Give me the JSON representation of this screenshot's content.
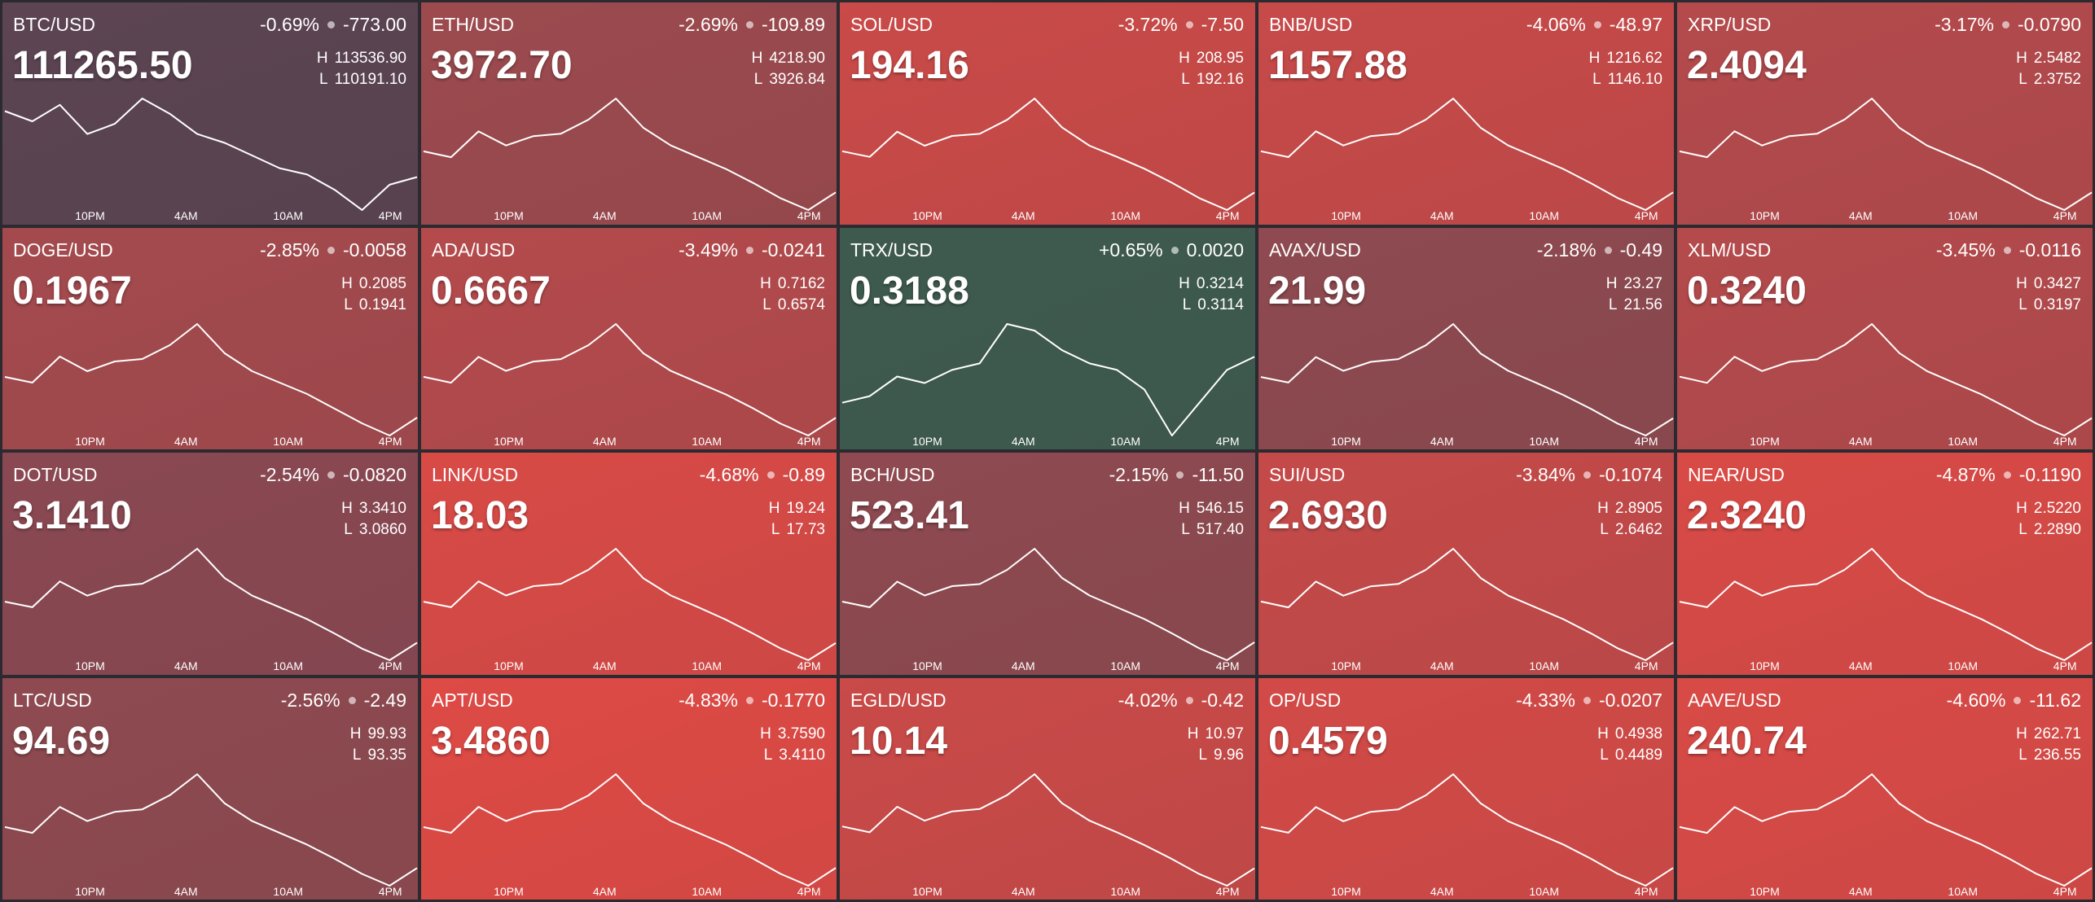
{
  "labels": {
    "high": "H",
    "low": "L"
  },
  "time_labels": [
    "10PM",
    "4AM",
    "10AM",
    "4PM"
  ],
  "tiles": [
    {
      "pair": "BTC/USD",
      "change_pct": "-0.69%",
      "change": "-773.00",
      "price": "111265.50",
      "high": "113536.90",
      "low": "110191.10",
      "color": "#5c4452",
      "spark": [
        112868,
        112600,
        113035,
        112266,
        112533,
        113202,
        112801,
        112266,
        112031,
        111697,
        111362,
        111195,
        110793,
        110258,
        110927,
        111128
      ]
    },
    {
      "pair": "ETH/USD",
      "change_pct": "-2.69%",
      "change": "-109.89",
      "price": "3972.70",
      "high": "4218.90",
      "low": "3926.84",
      "color": "#9c4a4e",
      "spark": [
        4087.5,
        4072.9,
        4137.1,
        4102.1,
        4125.4,
        4131.3,
        4166.3,
        4218.9,
        4145.9,
        4102.1,
        4072.9,
        4043.7,
        4008.6,
        3970.6,
        3941.4,
        3985.3
      ]
    },
    {
      "pair": "SOL/USD",
      "change_pct": "-3.72%",
      "change": "-7.50",
      "price": "194.16",
      "high": "208.95",
      "low": "192.16",
      "color": "#c94a48",
      "spark": [
        201.4,
        200.6,
        204.2,
        202.2,
        203.6,
        203.9,
        205.9,
        208.95,
        204.8,
        202.2,
        200.6,
        198.9,
        196.9,
        194.7,
        193.0,
        195.5
      ]
    },
    {
      "pair": "BNB/USD",
      "change_pct": "-4.06%",
      "change": "-48.97",
      "price": "1157.88",
      "high": "1216.62",
      "low": "1146.10",
      "color": "#c64a49",
      "spark": [
        1184.9,
        1181.4,
        1196.9,
        1188.4,
        1194.0,
        1195.5,
        1203.9,
        1216.6,
        1199.0,
        1188.4,
        1181.4,
        1174.3,
        1165.8,
        1156.7,
        1149.6,
        1160.2
      ]
    },
    {
      "pair": "XRP/USD",
      "change_pct": "-3.17%",
      "change": "-0.0790",
      "price": "2.4094",
      "high": "2.5482",
      "low": "2.3752",
      "color": "#b44a4c",
      "spark": [
        2.4704,
        2.4617,
        2.5,
        2.479,
        2.4928,
        2.4963,
        2.5171,
        2.5482,
        2.505,
        2.479,
        2.4617,
        2.4444,
        2.4236,
        2.4012,
        2.3839,
        2.4098
      ]
    },
    {
      "pair": "DOGE/USD",
      "change_pct": "-2.85%",
      "change": "-0.0058",
      "price": "0.1967",
      "high": "0.2085",
      "low": "0.1941",
      "color": "#a44a4e",
      "spark": [
        0.202,
        0.2013,
        0.2045,
        0.2027,
        0.2039,
        0.2042,
        0.2059,
        0.2085,
        0.2049,
        0.2027,
        0.2013,
        0.1999,
        0.1981,
        0.1963,
        0.1948,
        0.197
      ]
    },
    {
      "pair": "ADA/USD",
      "change_pct": "-3.49%",
      "change": "-0.0241",
      "price": "0.6667",
      "high": "0.7162",
      "low": "0.6574",
      "color": "#b44a4c",
      "spark": [
        0.6897,
        0.6868,
        0.6997,
        0.6927,
        0.6974,
        0.6986,
        0.7056,
        0.7162,
        0.7015,
        0.6927,
        0.6868,
        0.6809,
        0.6739,
        0.6662,
        0.6603,
        0.6692
      ]
    },
    {
      "pair": "TRX/USD",
      "change_pct": "+0.65%",
      "change": "0.0020",
      "price": "0.3188",
      "high": "0.3214",
      "low": "0.3114",
      "color": "#3e5a4e",
      "spark": [
        0.3144,
        0.3149,
        0.3164,
        0.3159,
        0.3169,
        0.3174,
        0.3204,
        0.3199,
        0.3184,
        0.3174,
        0.3169,
        0.3154,
        0.3119,
        0.3144,
        0.3169,
        0.3179
      ]
    },
    {
      "pair": "AVAX/USD",
      "change_pct": "-2.18%",
      "change": "-0.49",
      "price": "21.99",
      "high": "23.27",
      "low": "21.56",
      "color": "#8e4a50",
      "spark": [
        22.5,
        22.42,
        22.79,
        22.59,
        22.72,
        22.76,
        22.96,
        23.27,
        22.84,
        22.59,
        22.42,
        22.24,
        22.04,
        21.82,
        21.65,
        21.9
      ]
    },
    {
      "pair": "XLM/USD",
      "change_pct": "-3.45%",
      "change": "-0.0116",
      "price": "0.3240",
      "high": "0.3427",
      "low": "0.3197",
      "color": "#b44a4c",
      "spark": [
        0.3324,
        0.3312,
        0.3363,
        0.3335,
        0.3353,
        0.3358,
        0.3386,
        0.3427,
        0.337,
        0.3335,
        0.3312,
        0.3289,
        0.3261,
        0.3232,
        0.3209,
        0.3243
      ]
    },
    {
      "pair": "DOT/USD",
      "change_pct": "-2.54%",
      "change": "-0.0820",
      "price": "3.1410",
      "high": "3.3410",
      "low": "3.0860",
      "color": "#8a4852",
      "spark": [
        3.226,
        3.214,
        3.27,
        3.239,
        3.259,
        3.265,
        3.295,
        3.341,
        3.277,
        3.239,
        3.214,
        3.188,
        3.157,
        3.124,
        3.099,
        3.137
      ]
    },
    {
      "pair": "LINK/USD",
      "change_pct": "-4.68%",
      "change": "-0.89",
      "price": "18.03",
      "high": "19.24",
      "low": "17.73",
      "color": "#d84a46",
      "spark": [
        18.56,
        18.49,
        18.82,
        18.64,
        18.76,
        18.79,
        18.97,
        19.24,
        18.86,
        18.64,
        18.49,
        18.33,
        18.15,
        17.96,
        17.81,
        18.03
      ]
    },
    {
      "pair": "BCH/USD",
      "change_pct": "-2.15%",
      "change": "-11.50",
      "price": "523.41",
      "high": "546.15",
      "low": "517.40",
      "color": "#8e4a50",
      "spark": [
        533.2,
        531.8,
        538.1,
        534.7,
        537.0,
        537.5,
        541.0,
        546.2,
        539.0,
        534.7,
        531.8,
        528.9,
        525.4,
        521.7,
        518.8,
        523.2
      ]
    },
    {
      "pair": "SUI/USD",
      "change_pct": "-3.84%",
      "change": "-0.1074",
      "price": "2.6930",
      "high": "2.8905",
      "low": "2.6462",
      "color": "#c44a49",
      "spark": [
        2.7806,
        2.7684,
        2.8221,
        2.7928,
        2.8123,
        2.8172,
        2.8465,
        2.8905,
        2.8294,
        2.7928,
        2.7684,
        2.7439,
        2.7146,
        2.6828,
        2.6584,
        2.6951
      ]
    },
    {
      "pair": "NEAR/USD",
      "change_pct": "-4.87%",
      "change": "-0.1190",
      "price": "2.3240",
      "high": "2.5220",
      "low": "2.2890",
      "color": "#d84a46",
      "spark": [
        2.417,
        2.406,
        2.457,
        2.429,
        2.447,
        2.452,
        2.48,
        2.522,
        2.464,
        2.429,
        2.406,
        2.382,
        2.354,
        2.324,
        2.301,
        2.336
      ]
    },
    {
      "pair": "LTC/USD",
      "change_pct": "-2.56%",
      "change": "-2.49",
      "price": "94.69",
      "high": "99.93",
      "low": "93.35",
      "color": "#8e4a50",
      "spark": [
        96.97,
        96.64,
        98.09,
        97.3,
        97.82,
        97.96,
        98.75,
        99.93,
        98.29,
        97.3,
        96.64,
        95.98,
        95.19,
        94.34,
        93.68,
        94.67
      ]
    },
    {
      "pair": "APT/USD",
      "change_pct": "-4.83%",
      "change": "-0.1770",
      "price": "3.4860",
      "high": "3.7590",
      "low": "3.4110",
      "color": "#de4a45",
      "spark": [
        3.602,
        3.585,
        3.662,
        3.62,
        3.648,
        3.655,
        3.696,
        3.759,
        3.672,
        3.62,
        3.585,
        3.55,
        3.508,
        3.463,
        3.428,
        3.481
      ]
    },
    {
      "pair": "EGLD/USD",
      "change_pct": "-4.02%",
      "change": "-0.42",
      "price": "10.14",
      "high": "10.97",
      "low": "9.96",
      "color": "#c94a48",
      "spark": [
        10.52,
        10.47,
        10.69,
        10.57,
        10.65,
        10.67,
        10.79,
        10.97,
        10.72,
        10.57,
        10.47,
        10.36,
        10.24,
        10.11,
        10.01,
        10.16
      ]
    },
    {
      "pair": "OP/USD",
      "change_pct": "-4.33%",
      "change": "-0.0207",
      "price": "0.4579",
      "high": "0.4938",
      "low": "0.4489",
      "color": "#d24a47",
      "spark": [
        0.4736,
        0.4714,
        0.4812,
        0.4758,
        0.4794,
        0.4803,
        0.4857,
        0.4938,
        0.4826,
        0.4758,
        0.4714,
        0.4669,
        0.4615,
        0.4556,
        0.4511,
        0.4579
      ]
    },
    {
      "pair": "AAVE/USD",
      "change_pct": "-4.60%",
      "change": "-11.62",
      "price": "240.74",
      "high": "262.71",
      "low": "236.55",
      "color": "#d84a46",
      "spark": [
        250.94,
        249.63,
        255.39,
        252.25,
        254.34,
        254.86,
        258.0,
        262.71,
        256.17,
        252.25,
        249.63,
        247.01,
        243.87,
        240.47,
        237.86,
        241.78
      ]
    }
  ]
}
